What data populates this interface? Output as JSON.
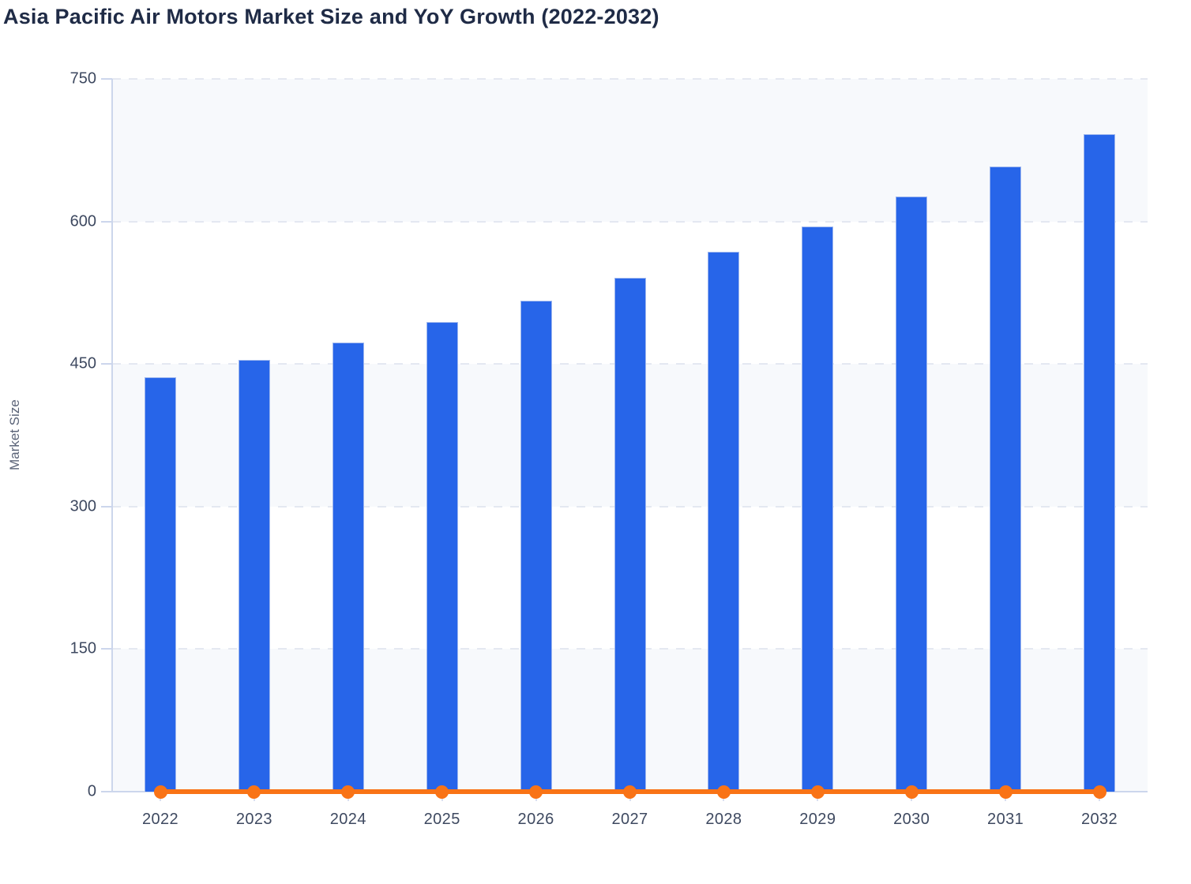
{
  "page": {
    "title": "Asia Pacific Air Motors Market Size and YoY Growth (2022-2032)"
  },
  "chart_data": {
    "type": "combo",
    "title": "Asia Pacific Air Motors Market Size and YoY Growth (2022-2032)",
    "ylabel": "Market Size",
    "xlabel": "",
    "categories": [
      "2022",
      "2023",
      "2024",
      "2025",
      "2026",
      "2027",
      "2028",
      "2029",
      "2030",
      "2031",
      "2032"
    ],
    "series": [
      {
        "name": "Market Size",
        "type": "bar",
        "color": "#2765e9",
        "values": [
          436,
          454,
          473,
          494,
          517,
          541,
          568,
          595,
          626,
          658,
          692
        ]
      },
      {
        "name": "YoY Growth",
        "type": "line",
        "color": "#f97316",
        "values": [
          0,
          0,
          0,
          0,
          0,
          0,
          0,
          0,
          0,
          0,
          0
        ],
        "note": "Line renders flat at ~0 on the left Market Size axis; growth values are not labeled in the chart."
      }
    ],
    "ylim": [
      0,
      750
    ],
    "yticks": [
      0,
      150,
      300,
      450,
      600,
      750
    ],
    "legend": "none",
    "grid": "horizontal dashed",
    "styles": {
      "bar_fill": "#2765e9",
      "bar_stroke": "#9db6ee",
      "line_color": "#f97316",
      "band_fill": "#f7f9fc",
      "grid_color": "#e4e8f1",
      "axis_color": "#ccd6ec",
      "tick_mark_color": "#d9e0f1",
      "title_color": "#1f2b46",
      "tick_label_color": "#3e4960",
      "axis_title_color": "#5b6478"
    }
  }
}
